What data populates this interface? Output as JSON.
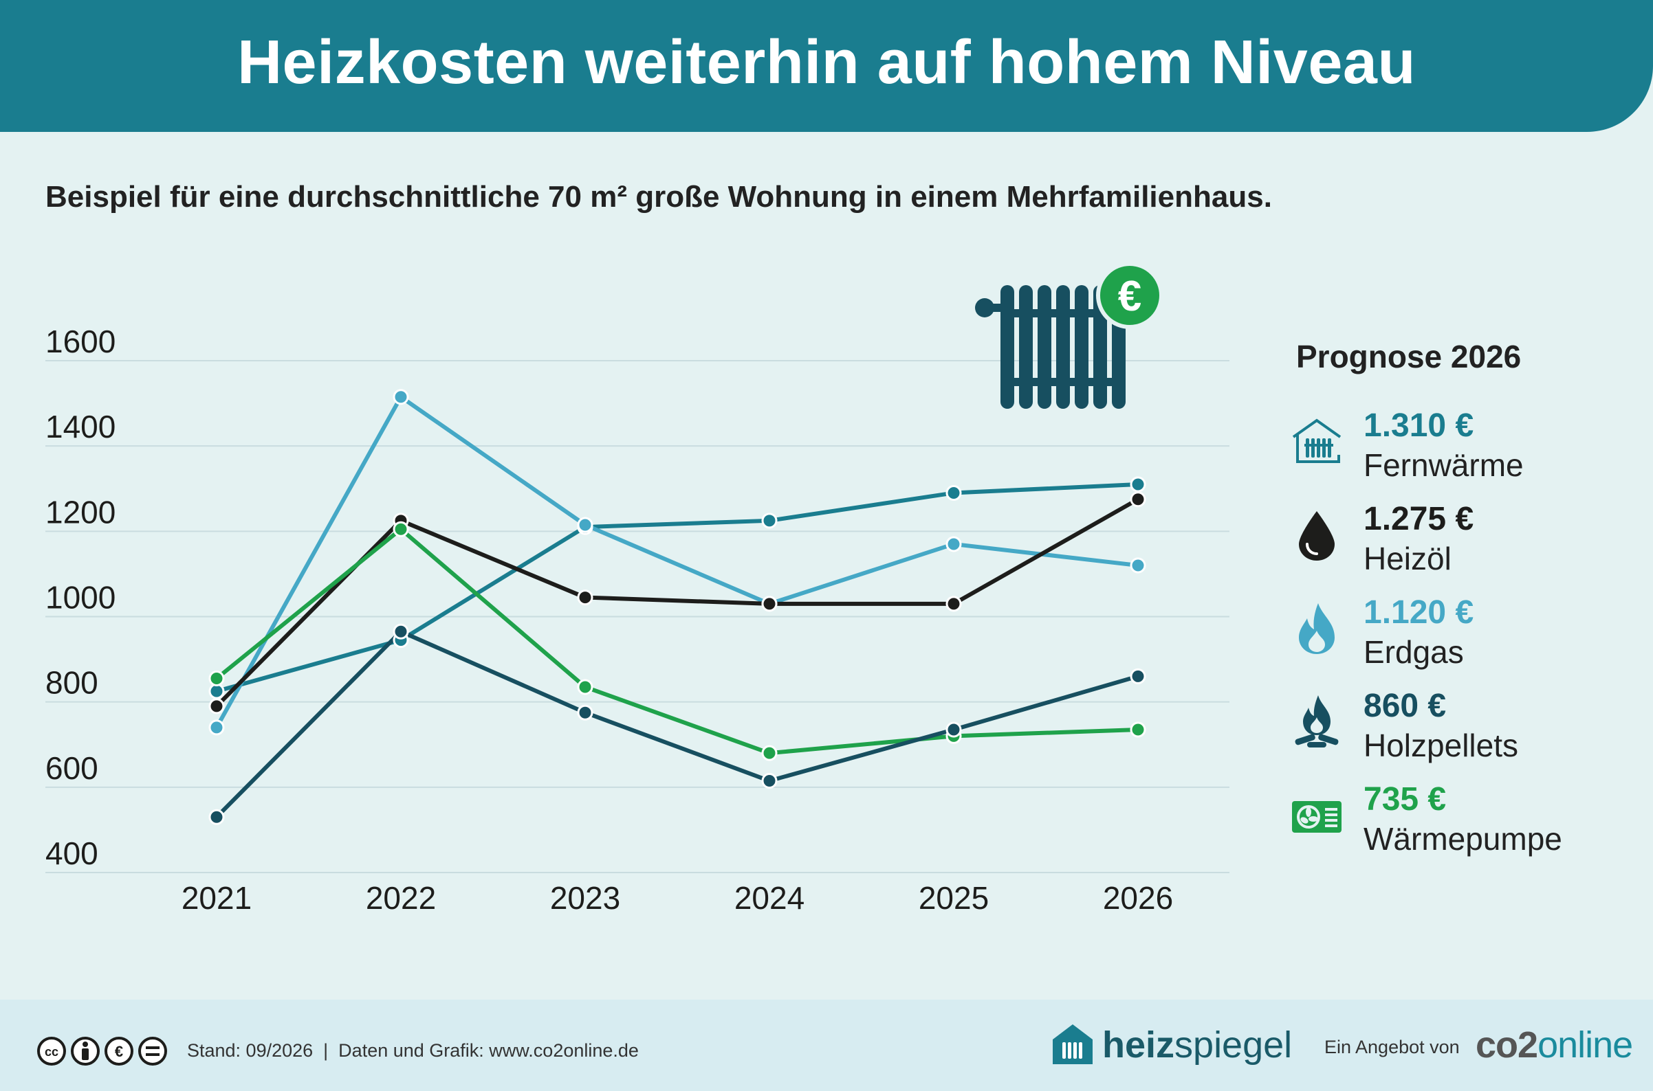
{
  "header": {
    "title": "Heizkosten weiterhin auf hohem Niveau"
  },
  "subtitle": "Beispiel für eine durchschnittliche 70 m² große Wohnung in einem Mehrfamilienhaus.",
  "chart_data": {
    "type": "line",
    "x": [
      "2021",
      "2022",
      "2023",
      "2024",
      "2025",
      "2026"
    ],
    "ylim": [
      400,
      1600
    ],
    "yticks": [
      "400",
      "600",
      "800",
      "1000",
      "1200",
      "1400",
      "1600"
    ],
    "grid": true,
    "series": [
      {
        "name": "Fernwärme",
        "color": "#1a7d8f",
        "values": [
          825,
          945,
          1210,
          1225,
          1290,
          1310
        ]
      },
      {
        "name": "Erdgas",
        "color": "#45a8c6",
        "values": [
          740,
          1515,
          1215,
          1030,
          1170,
          1120
        ]
      },
      {
        "name": "Heizöl",
        "color": "#1d1d1b",
        "values": [
          790,
          1225,
          1045,
          1030,
          1030,
          1275
        ]
      },
      {
        "name": "Wärmepumpe",
        "color": "#1fa24b",
        "values": [
          855,
          1205,
          835,
          680,
          720,
          735
        ]
      },
      {
        "name": "Holzpellets",
        "color": "#174f60",
        "values": [
          530,
          965,
          775,
          615,
          735,
          860
        ]
      }
    ]
  },
  "legend": {
    "title": "Prognose 2026",
    "items": [
      {
        "value": "1.310 €",
        "label": "Fernwärme",
        "color": "#1a7d8f",
        "icon": "district-heating-icon"
      },
      {
        "value": "1.275 €",
        "label": "Heizöl",
        "color": "#1d1d1b",
        "icon": "oil-drop-icon"
      },
      {
        "value": "1.120 €",
        "label": "Erdgas",
        "color": "#45a8c6",
        "icon": "gas-flame-icon"
      },
      {
        "value": "860 €",
        "label": "Holzpellets",
        "color": "#174f60",
        "icon": "wood-fire-icon"
      },
      {
        "value": "735 €",
        "label": "Wärmepumpe",
        "color": "#1fa24b",
        "icon": "heat-pump-icon"
      }
    ]
  },
  "decoration": {
    "icon": "radiator-euro-icon",
    "euro_symbol": "€"
  },
  "footer": {
    "license_icon": "cc-by-nc-nd-icon",
    "text": "Stand: 09/2026  |  Daten und Grafik: www.co2online.de",
    "brand1_bold": "heiz",
    "brand1_rest": "spiegel",
    "offer_text": "Ein Angebot von",
    "brand2_part1": "co2",
    "brand2_part2": "online"
  }
}
